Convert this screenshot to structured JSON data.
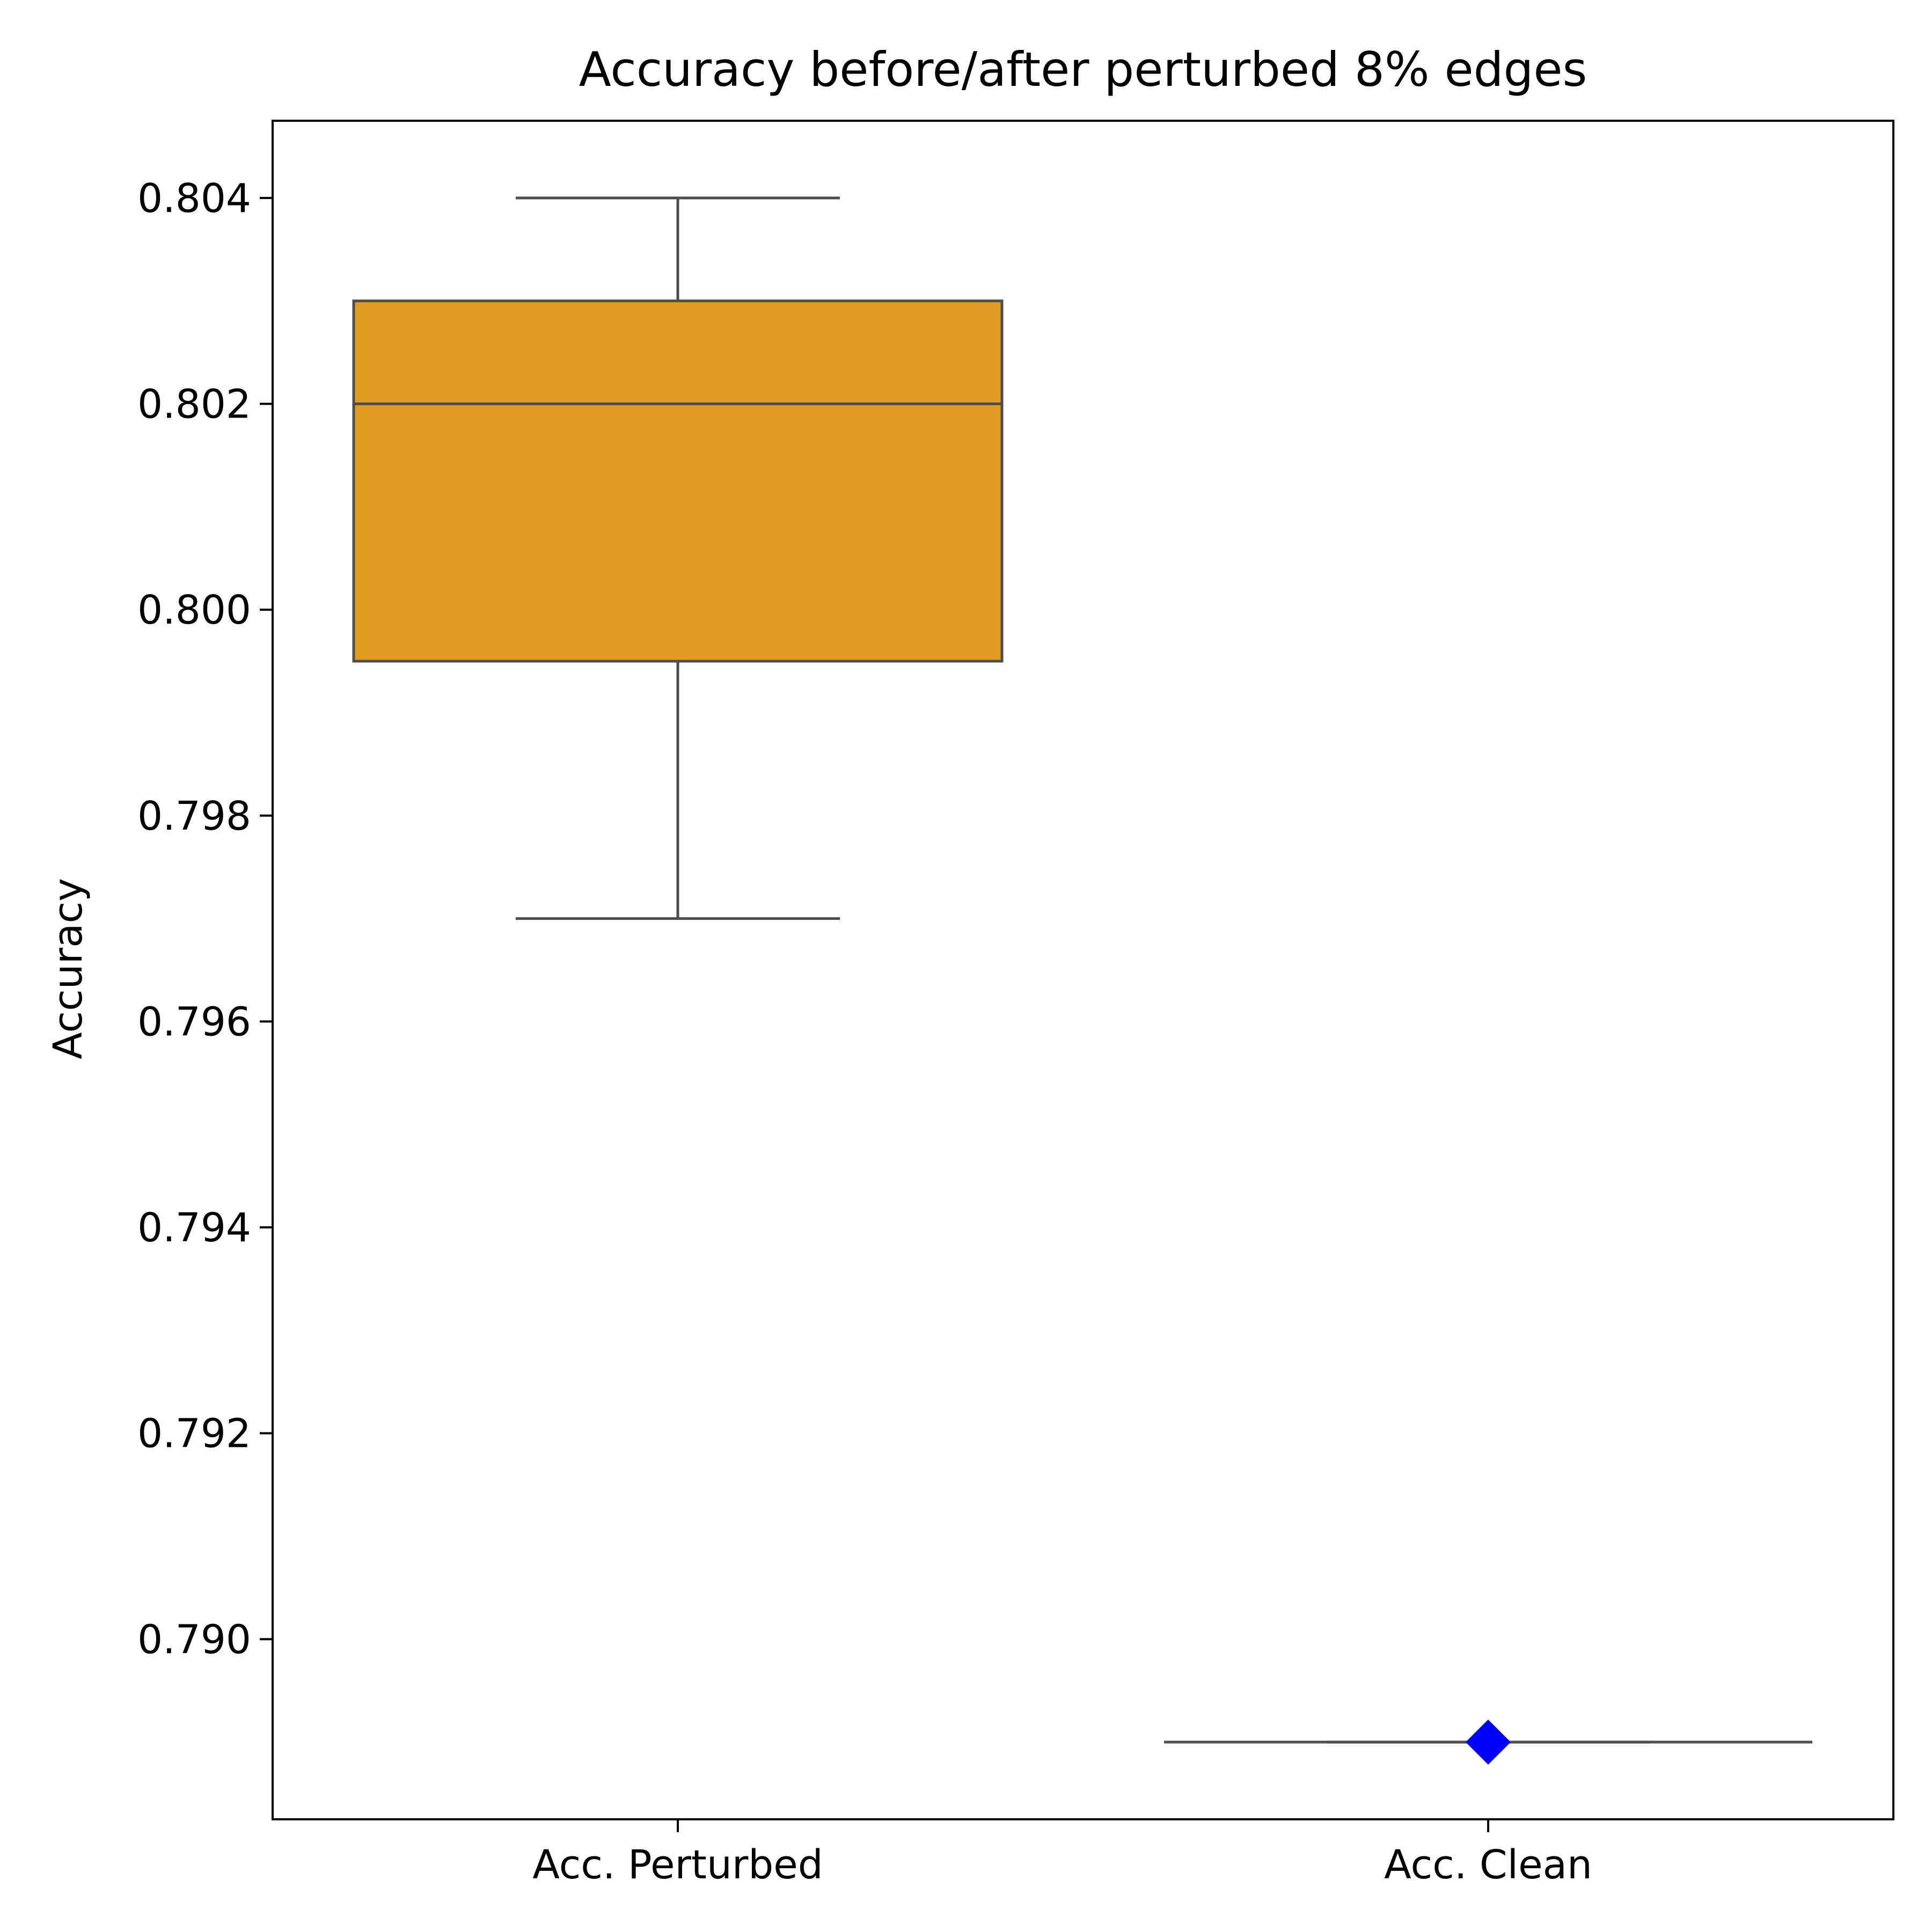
{
  "chart_data": {
    "type": "box",
    "title": "Accuracy before/after perturbed 8% edges",
    "xlabel": "",
    "ylabel": "Accuracy",
    "ylim": [
      0.78825,
      0.80475
    ],
    "yticks": [
      0.79,
      0.792,
      0.794,
      0.796,
      0.798,
      0.8,
      0.802,
      0.804
    ],
    "ytick_labels": [
      "0.790",
      "0.792",
      "0.794",
      "0.796",
      "0.798",
      "0.800",
      "0.802",
      "0.804"
    ],
    "categories": [
      "Acc. Perturbed",
      "Acc. Clean"
    ],
    "boxes": [
      {
        "category": "Acc. Perturbed",
        "whisker_low": 0.797,
        "q1": 0.7995,
        "median": 0.802,
        "q3": 0.803,
        "whisker_high": 0.804,
        "fill": "#df9b22"
      },
      {
        "category": "Acc. Clean",
        "whisker_low": 0.789,
        "q1": 0.789,
        "median": 0.789,
        "q3": 0.789,
        "whisker_high": 0.789,
        "marker": "diamond",
        "marker_value": 0.789,
        "marker_color": "#0000ff"
      }
    ],
    "line_color": "#4d4d4d",
    "grid": false,
    "legend": "none"
  }
}
